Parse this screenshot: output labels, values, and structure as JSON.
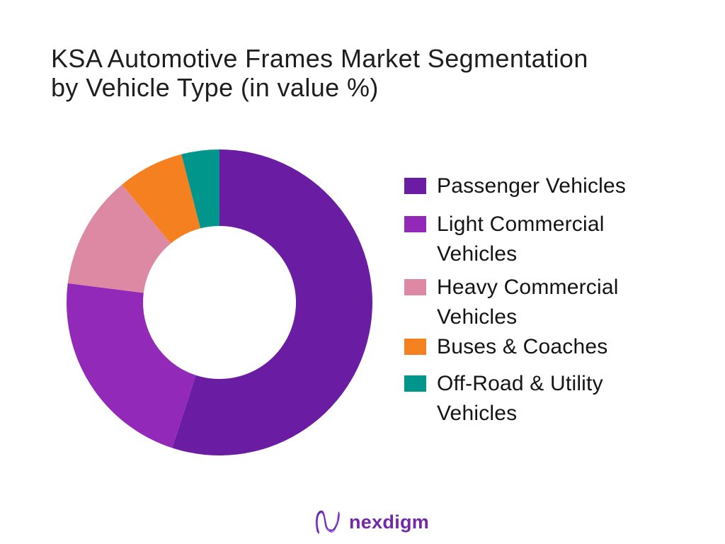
{
  "title": {
    "line1": "KSA Automotive Frames Market Segmentation",
    "line2": "by Vehicle Type (in value %)"
  },
  "chart_data": {
    "type": "pie",
    "subtype": "donut",
    "title": "KSA Automotive Frames Market Segmentation by Vehicle Type (in value %)",
    "unit": "value %",
    "donut_hole_ratio": 0.5,
    "start_angle_deg": 0,
    "direction": "clockwise",
    "legend_position": "right",
    "hole_color": "#FFFFFF",
    "series": [
      {
        "name": "Passenger Vehicles",
        "value": 55,
        "color": "#6A1CA2"
      },
      {
        "name": "Light Commercial Vehicles",
        "value": 22,
        "color": "#9329B8"
      },
      {
        "name": "Heavy Commercial Vehicles",
        "value": 12,
        "color": "#DE89A4"
      },
      {
        "name": "Buses & Coaches",
        "value": 7,
        "color": "#F5801F"
      },
      {
        "name": "Off-Road & Utility Vehicles",
        "value": 4,
        "color": "#00968C"
      }
    ]
  },
  "logo": {
    "text": "nexdigm",
    "color": "#7229A8",
    "mark_colors": [
      "#8B3FD6",
      "#6D28B8",
      "#A34FE0",
      "#4F2490"
    ]
  }
}
